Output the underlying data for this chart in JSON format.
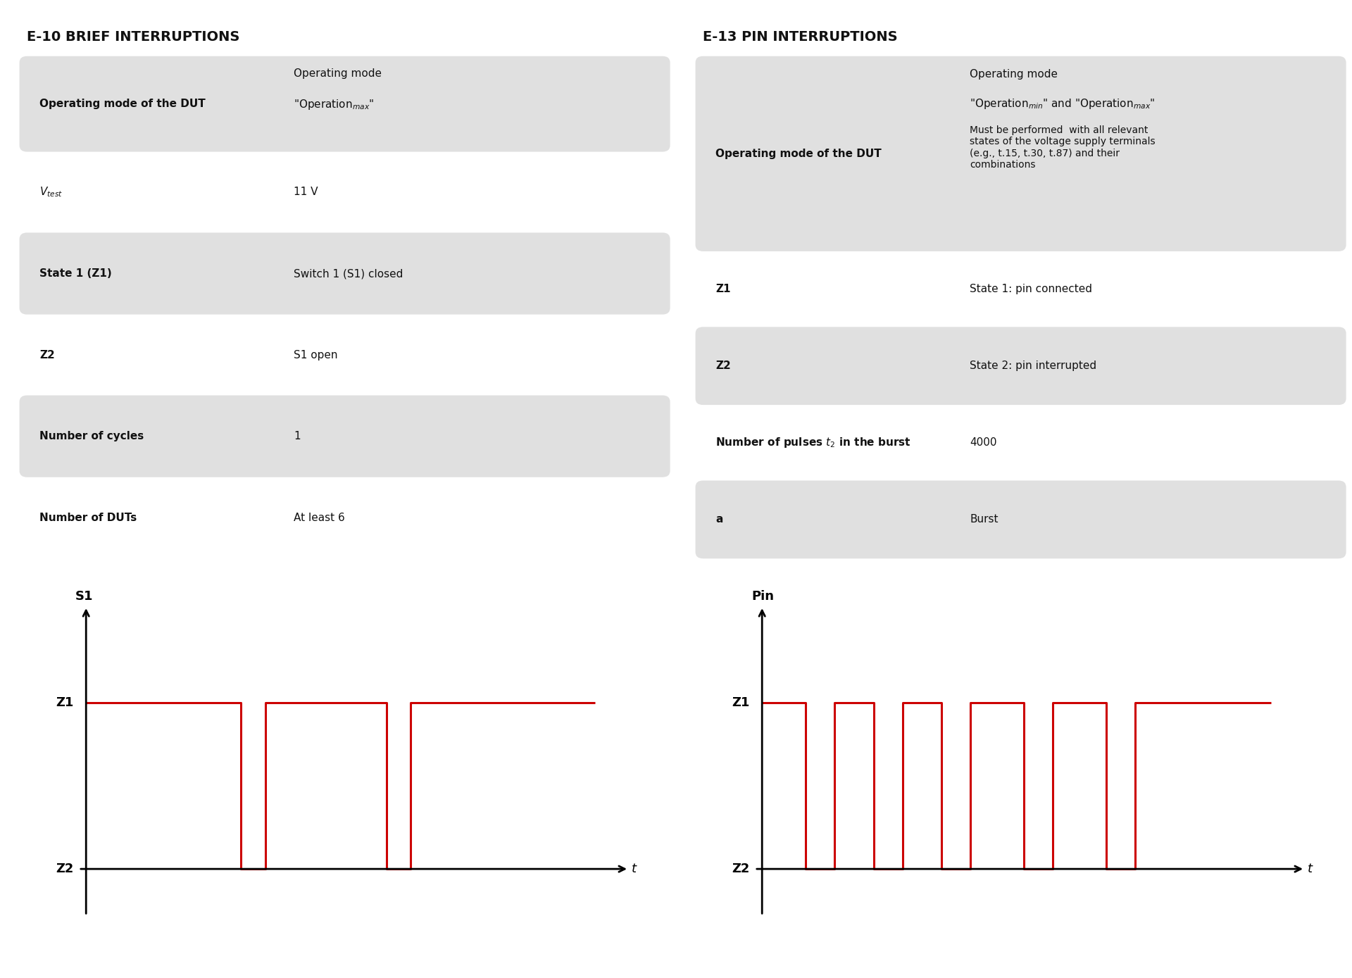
{
  "title_left": "E-10 BRIEF INTERRUPTIONS",
  "title_right": "E-13 PIN INTERRUPTIONS",
  "bg_color": "#ffffff",
  "table_bg_shaded": "#e0e0e0",
  "left_rows": [
    {
      "label": "Operating mode of the DUT",
      "value_line1": "Operating mode",
      "value_line2": "\"Operation$_{max}$\"",
      "shaded": true,
      "extra": null
    },
    {
      "label": "$V_{test}$",
      "value_line1": "11 V",
      "value_line2": null,
      "shaded": false,
      "extra": null
    },
    {
      "label": "State 1 (Z1)",
      "value_line1": "Switch 1 (S1) closed",
      "value_line2": null,
      "shaded": true,
      "extra": null
    },
    {
      "label": "Z2",
      "value_line1": "S1 open",
      "value_line2": null,
      "shaded": false,
      "extra": null
    },
    {
      "label": "Number of cycles",
      "value_line1": "1",
      "value_line2": null,
      "shaded": true,
      "extra": null
    },
    {
      "label": "Number of DUTs",
      "value_line1": "At least 6",
      "value_line2": null,
      "shaded": false,
      "extra": null
    }
  ],
  "right_rows": [
    {
      "label": "Operating mode of the DUT",
      "value_line1": "Operating mode",
      "value_line2": "\"Operation$_{min}$\" and \"Operation$_{max}$\"",
      "shaded": true,
      "extra": "Must be performed  with all relevant\nstates of the voltage supply terminals\n(e.g., t.15, t.30, t.87) and their\ncombinations"
    },
    {
      "label": "Z1",
      "value_line1": "State 1: pin connected",
      "value_line2": null,
      "shaded": false,
      "extra": null
    },
    {
      "label": "Z2",
      "value_line1": "State 2: pin interrupted",
      "value_line2": null,
      "shaded": true,
      "extra": null
    },
    {
      "label": "Number of pulses $t_2$ in the burst",
      "value_line1": "4000",
      "value_line2": null,
      "shaded": false,
      "extra": null
    },
    {
      "label": "a",
      "value_line1": "Burst",
      "value_line2": null,
      "shaded": true,
      "extra": null
    }
  ],
  "wave_left_ylabel": "S1",
  "wave_left_xlabel": "t",
  "wave_left_y1": "Z1",
  "wave_left_y2": "Z2",
  "wave_right_ylabel": "Pin",
  "wave_right_xlabel": "t",
  "wave_right_y1": "Z1",
  "wave_right_y2": "Z2",
  "line_color": "#cc0000",
  "wave_left_x": [
    0,
    3.2,
    3.2,
    3.7,
    3.7,
    6.2,
    6.2,
    6.7,
    6.7,
    8.7,
    8.7,
    10.5
  ],
  "wave_left_y": [
    1.0,
    1.0,
    0.0,
    0.0,
    1.0,
    1.0,
    0.0,
    0.0,
    1.0,
    1.0,
    1.0,
    1.0
  ],
  "wave_right_x": [
    0,
    0.9,
    0.9,
    1.5,
    1.5,
    2.3,
    2.3,
    2.9,
    2.9,
    3.7,
    3.7,
    4.3,
    4.3,
    5.4,
    5.4,
    6.0,
    6.0,
    7.1,
    7.1,
    7.7,
    7.7,
    9.2,
    9.2,
    10.5
  ],
  "wave_right_y": [
    1.0,
    1.0,
    0.0,
    0.0,
    1.0,
    1.0,
    0.0,
    0.0,
    1.0,
    1.0,
    0.0,
    0.0,
    1.0,
    1.0,
    0.0,
    0.0,
    1.0,
    1.0,
    0.0,
    0.0,
    1.0,
    1.0,
    1.0,
    1.0
  ]
}
